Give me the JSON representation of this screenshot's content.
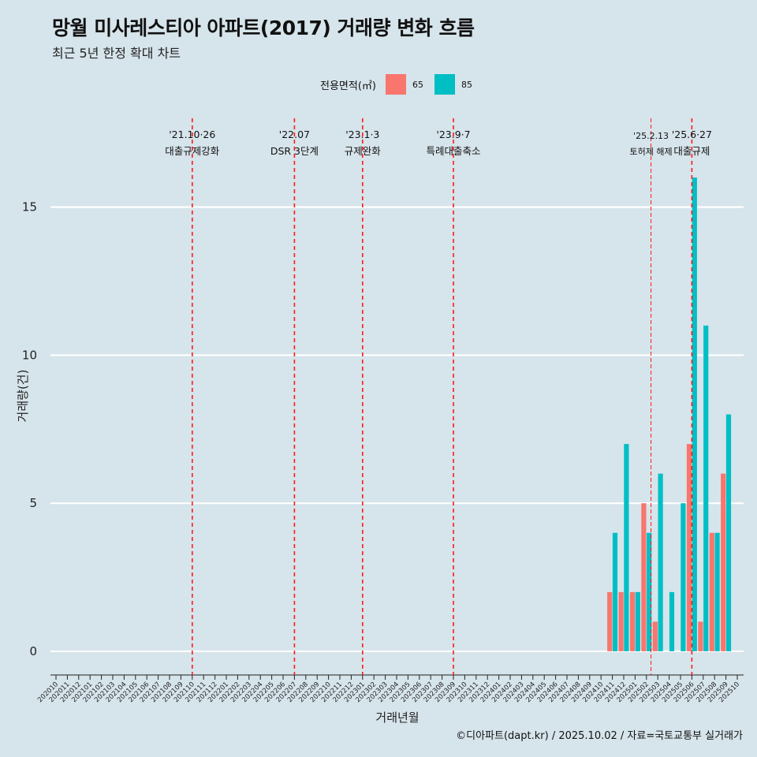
{
  "title": "망월 미사레스티아 아파트(2017) 거래량 변화 흐름",
  "subtitle": "최근 5년 한정 확대 차트",
  "caption": "©디아파트(dapt.kr) / 2025.10.02 / 자료=국토교통부 실거래가",
  "legend": {
    "title": "전용면적(㎡)",
    "items": [
      {
        "label": "65",
        "color": "#f8766d"
      },
      {
        "label": "85",
        "color": "#00bfc4"
      }
    ]
  },
  "chart_data": {
    "type": "bar",
    "xlabel": "거래년월",
    "ylabel": "거래량(건)",
    "ylim": [
      -0.8,
      18
    ],
    "yticks": [
      0,
      5,
      10,
      15
    ],
    "categories": [
      "202010",
      "202011",
      "202012",
      "202101",
      "202102",
      "202103",
      "202104",
      "202105",
      "202106",
      "202107",
      "202108",
      "202109",
      "202110",
      "202111",
      "202112",
      "202201",
      "202202",
      "202203",
      "202204",
      "202205",
      "202206",
      "202207",
      "202208",
      "202209",
      "202210",
      "202211",
      "202212",
      "202301",
      "202302",
      "202303",
      "202304",
      "202305",
      "202306",
      "202307",
      "202308",
      "202309",
      "202310",
      "202311",
      "202312",
      "202401",
      "202402",
      "202403",
      "202404",
      "202405",
      "202406",
      "202407",
      "202408",
      "202409",
      "202410",
      "202411",
      "202412",
      "202501",
      "202502",
      "202503",
      "202504",
      "202505",
      "202506",
      "202507",
      "202508",
      "202509",
      "202510"
    ],
    "series": [
      {
        "name": "65",
        "color": "#f8766d",
        "values": {
          "202411": 2,
          "202412": 2,
          "202501": 2,
          "202502": 5,
          "202503": 1,
          "202506": 7,
          "202507": 1,
          "202508": 4,
          "202509": 6
        }
      },
      {
        "name": "85",
        "color": "#00bfc4",
        "values": {
          "202411": 4,
          "202412": 7,
          "202501": 2,
          "202502": 4,
          "202503": 6,
          "202504": 2,
          "202505": 5,
          "202506": 16,
          "202507": 11,
          "202508": 4,
          "202509": 8
        }
      }
    ],
    "events": [
      {
        "date": "'21.10·26",
        "label": "대출규제강화",
        "x": "202110",
        "offset": 0,
        "small": false,
        "style": "dashed"
      },
      {
        "date": "'22.07",
        "label": "DSR 3단계",
        "x": "202207",
        "offset": 0,
        "small": false,
        "style": "dashed"
      },
      {
        "date": "'23.1·3",
        "label": "규제완화",
        "x": "202301",
        "offset": 0,
        "small": false,
        "style": "dashed"
      },
      {
        "date": "'23.9·7",
        "label": "특례대출축소",
        "x": "202309",
        "offset": 0,
        "small": false,
        "style": "dashed"
      },
      {
        "date": "'25.2.13",
        "label": "토허제 해제",
        "x": "202502",
        "offset": 0.4,
        "small": true,
        "style": "thin"
      },
      {
        "date": "'25.6·27",
        "label": "대출규제",
        "x": "202506",
        "offset": 0,
        "small": false,
        "style": "dashed"
      }
    ]
  }
}
